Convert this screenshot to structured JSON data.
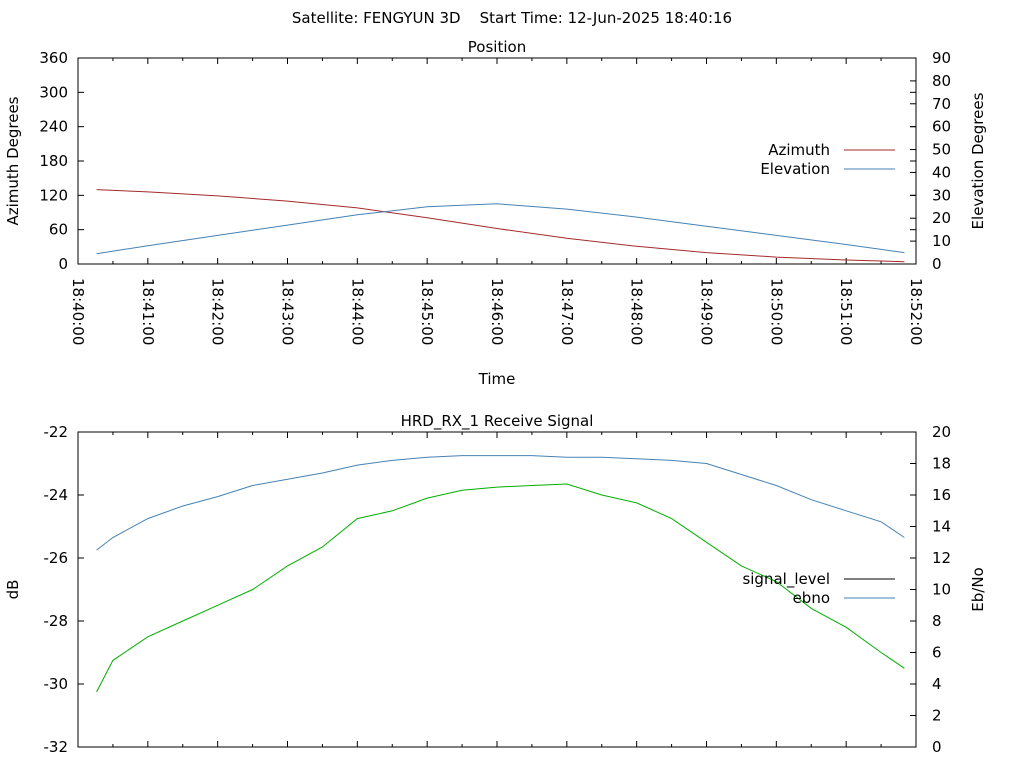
{
  "header": {
    "satellite": "Satellite: FENGYUN 3D",
    "start_time": "Start Time: 12-Jun-2025 18:40:16"
  },
  "chart_data": [
    {
      "type": "line",
      "title": "Position",
      "xlabel": "Time",
      "ylabel": "Azimuth Degrees",
      "y2label": "Elevation Degrees",
      "x_ticks": [
        "18:40:00",
        "18:41:00",
        "18:42:00",
        "18:43:00",
        "18:44:00",
        "18:45:00",
        "18:46:00",
        "18:47:00",
        "18:48:00",
        "18:49:00",
        "18:50:00",
        "18:51:00",
        "18:52:00"
      ],
      "xlim": [
        "18:40:00",
        "18:52:00"
      ],
      "ylim": [
        0,
        360
      ],
      "y_ticks": [
        0,
        60,
        120,
        180,
        240,
        300,
        360
      ],
      "y2lim": [
        0,
        90
      ],
      "y2_ticks": [
        0,
        10,
        20,
        30,
        40,
        50,
        60,
        70,
        80,
        90
      ],
      "grid": false,
      "legend_position": "right",
      "series": [
        {
          "name": "Azimuth",
          "axis": "y",
          "color": "#a52a2a",
          "x": [
            "18:40:16",
            "18:41:00",
            "18:42:00",
            "18:43:00",
            "18:44:00",
            "18:45:00",
            "18:46:00",
            "18:47:00",
            "18:48:00",
            "18:49:00",
            "18:50:00",
            "18:51:00",
            "18:51:50"
          ],
          "values": [
            130,
            126,
            119,
            110,
            98,
            81,
            62,
            45,
            31,
            20,
            12,
            7,
            4
          ]
        },
        {
          "name": "Elevation",
          "axis": "y2",
          "color": "#4682b4",
          "x": [
            "18:40:16",
            "18:41:00",
            "18:42:00",
            "18:43:00",
            "18:44:00",
            "18:45:00",
            "18:46:00",
            "18:47:00",
            "18:48:00",
            "18:49:00",
            "18:50:00",
            "18:51:00",
            "18:51:50"
          ],
          "values": [
            4.5,
            8,
            12.5,
            17,
            21.5,
            25,
            26.3,
            24,
            20.5,
            16.5,
            12.5,
            8.5,
            5
          ]
        }
      ]
    },
    {
      "type": "line",
      "title": "HRD_RX_1 Receive Signal",
      "xlabel": "",
      "ylabel": "dB",
      "y2label": "Eb/No",
      "ylim": [
        -32,
        -22
      ],
      "y_ticks": [
        -32,
        -30,
        -28,
        -26,
        -24,
        -22
      ],
      "y2lim": [
        0,
        20
      ],
      "y2_ticks": [
        0,
        2,
        4,
        6,
        8,
        10,
        12,
        14,
        16,
        18,
        20
      ],
      "xlim": [
        "18:40:00",
        "18:52:00"
      ],
      "grid": false,
      "legend_position": "right",
      "series": [
        {
          "name": "signal_level",
          "axis": "y",
          "color": "#000000",
          "x": [],
          "values": []
        },
        {
          "name": "ebno",
          "axis": "y2",
          "color": "#4682b4",
          "x": [
            "18:40:16",
            "18:40:30",
            "18:41:00",
            "18:41:30",
            "18:42:00",
            "18:42:30",
            "18:43:00",
            "18:43:30",
            "18:44:00",
            "18:44:30",
            "18:45:00",
            "18:45:30",
            "18:46:00",
            "18:46:30",
            "18:47:00",
            "18:47:30",
            "18:48:00",
            "18:48:30",
            "18:49:00",
            "18:49:30",
            "18:50:00",
            "18:50:30",
            "18:51:00",
            "18:51:30",
            "18:51:50"
          ],
          "values": [
            12.5,
            13.3,
            14.5,
            15.3,
            15.9,
            16.6,
            17.0,
            17.4,
            17.9,
            18.2,
            18.4,
            18.5,
            18.5,
            18.5,
            18.4,
            18.4,
            18.3,
            18.2,
            18.0,
            17.3,
            16.6,
            15.7,
            15.0,
            14.3,
            13.3
          ]
        },
        {
          "name": "",
          "axis": "y2",
          "color": "#00b000",
          "x": [
            "18:40:16",
            "18:40:30",
            "18:41:00",
            "18:41:30",
            "18:42:00",
            "18:42:30",
            "18:43:00",
            "18:43:30",
            "18:44:00",
            "18:44:30",
            "18:45:00",
            "18:45:30",
            "18:46:00",
            "18:46:30",
            "18:47:00",
            "18:47:30",
            "18:48:00",
            "18:48:30",
            "18:49:00",
            "18:49:30",
            "18:50:00",
            "18:50:30",
            "18:51:00",
            "18:51:30",
            "18:51:50"
          ],
          "values": [
            3.5,
            5.5,
            7.0,
            8.0,
            9.0,
            10.0,
            11.5,
            12.7,
            14.5,
            15.0,
            15.8,
            16.3,
            16.5,
            16.6,
            16.7,
            16.0,
            15.5,
            14.5,
            13.0,
            11.5,
            10.5,
            8.8,
            7.6,
            6.0,
            5.0
          ]
        }
      ]
    }
  ]
}
